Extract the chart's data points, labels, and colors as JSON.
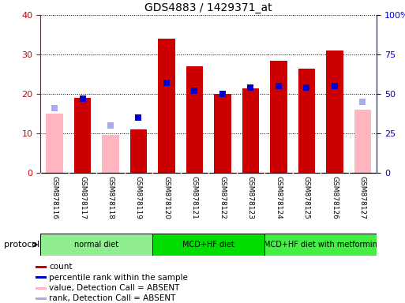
{
  "title": "GDS4883 / 1429371_at",
  "samples": [
    "GSM878116",
    "GSM878117",
    "GSM878118",
    "GSM878119",
    "GSM878120",
    "GSM878121",
    "GSM878122",
    "GSM878123",
    "GSM878124",
    "GSM878125",
    "GSM878126",
    "GSM878127"
  ],
  "count_values": [
    15,
    19,
    9.5,
    11,
    34,
    27,
    20,
    21.5,
    28.5,
    26.5,
    31,
    16
  ],
  "percentile_values": [
    41,
    47,
    30,
    35,
    57,
    52,
    50,
    54,
    55,
    54,
    55,
    45
  ],
  "absent_mask": [
    true,
    false,
    true,
    false,
    false,
    false,
    false,
    false,
    false,
    false,
    false,
    true
  ],
  "protocols": [
    {
      "label": "normal diet",
      "start": 0,
      "end": 3,
      "color": "#90EE90"
    },
    {
      "label": "MCD+HF diet",
      "start": 4,
      "end": 7,
      "color": "#00DD00"
    },
    {
      "label": "MCD+HF diet with metformin",
      "start": 8,
      "end": 11,
      "color": "#44EE44"
    }
  ],
  "bar_color_present": "#CC0000",
  "bar_color_absent": "#FFB6C1",
  "dot_color_present": "#0000CC",
  "dot_color_absent": "#AAAAEE",
  "ylim_left": [
    0,
    40
  ],
  "ylim_right": [
    0,
    100
  ],
  "yticks_left": [
    0,
    10,
    20,
    30,
    40
  ],
  "yticks_right": [
    0,
    25,
    50,
    75,
    100
  ],
  "ytick_labels_left": [
    "0",
    "10",
    "20",
    "30",
    "40"
  ],
  "ytick_labels_right": [
    "0",
    "25",
    "50",
    "75",
    "100%"
  ],
  "legend_labels": [
    "count",
    "percentile rank within the sample",
    "value, Detection Call = ABSENT",
    "rank, Detection Call = ABSENT"
  ],
  "legend_colors": [
    "#CC0000",
    "#0000CC",
    "#FFB6C1",
    "#AAAAEE"
  ],
  "protocol_label": "protocol",
  "bar_width": 0.6,
  "dot_size": 40,
  "tick_label_color_left": "#CC0000",
  "tick_label_color_right": "#0000CC",
  "sample_box_color": "#DDDDDD",
  "figsize": [
    5.13,
    3.84
  ],
  "dpi": 100
}
